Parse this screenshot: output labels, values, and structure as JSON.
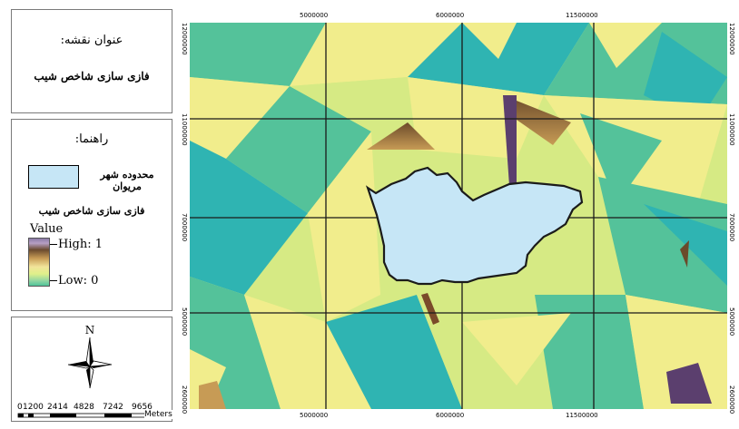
{
  "title_box": {
    "label": "عنوان نقشه:",
    "value": "فازی سازی شاخص شیب"
  },
  "legend": {
    "heading": "راهنما:",
    "city_label": "محدوده شهر مریوان",
    "city_color": "#c6e6f6",
    "layer_title": "فازی سازی شاخص شیب",
    "value_label": "Value",
    "high_label": "High: 1",
    "low_label": "Low: 0"
  },
  "north_arrow": {
    "letter": "N",
    "icon": "north-arrow-icon"
  },
  "scale_bar": {
    "labels": [
      "0",
      "1200",
      "2414",
      "4828",
      "7242",
      "9656"
    ],
    "unit": "Meters"
  },
  "map": {
    "x_coords_top": [
      "5000000",
      "6000000",
      "11500000"
    ],
    "x_coords_bottom": [
      "5000000",
      "6000000",
      "11500000"
    ],
    "y_coords_left": [
      "12000000",
      "11000000",
      "7000000",
      "5000000",
      "2600000"
    ],
    "y_coords_right": [
      "12000000",
      "11000000",
      "7000000",
      "5000000",
      "2600000"
    ],
    "palette": {
      "green": "#54c29a",
      "teal": "#2fb4b2",
      "yellow": "#f1ed8c",
      "lime": "#d6ea84",
      "brown": "#7a4a2a",
      "purple": "#5b3f6e",
      "city_fill": "#c6e6f6",
      "grid": "#1a1a1a"
    }
  }
}
